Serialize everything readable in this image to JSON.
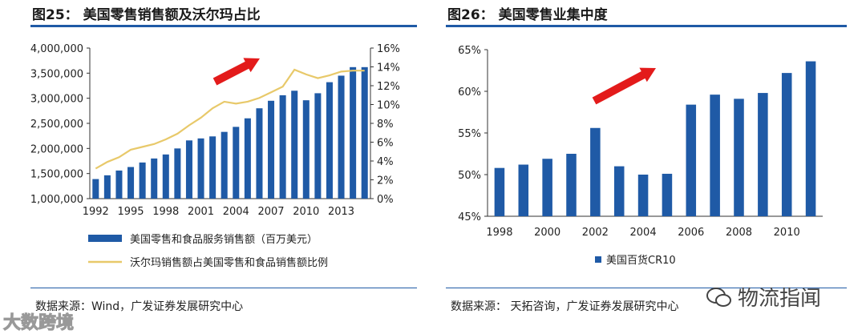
{
  "left": {
    "title": "图25： 美国零售销售额及沃尔玛占比",
    "source": "数据来源：Wind，广发证券发展研究中心",
    "legend": [
      "美国零售和食品服务销售额（百万美元）",
      "沃尔玛销售额占美国零售和食品销售额比例"
    ],
    "colors": {
      "bar": "#1f5aa6",
      "line": "#e8c96a",
      "arrow": "#e31b1b"
    }
  },
  "right": {
    "title": "图26： 美国零售业集中度",
    "source": "数据来源： 天拓咨询，广发证券发展研究中心",
    "legend": [
      "美国百货CR10"
    ],
    "colors": {
      "bar": "#1f5aa6",
      "arrow": "#e31b1b"
    }
  },
  "watermarks": {
    "left": "大数跨境",
    "right": "物流指闻"
  },
  "chart_data": [
    {
      "type": "bar+line",
      "title": "图25： 美国零售销售额及沃尔玛占比",
      "x": [
        1992,
        1993,
        1994,
        1995,
        1996,
        1997,
        1998,
        1999,
        2000,
        2001,
        2002,
        2003,
        2004,
        2005,
        2006,
        2007,
        2008,
        2009,
        2010,
        2011,
        2012,
        2013,
        2014,
        2015
      ],
      "x_tick_labels": [
        "1992",
        "1995",
        "1998",
        "2001",
        "2004",
        "2007",
        "2010",
        "2013"
      ],
      "series": [
        {
          "name": "美国零售和食品服务销售额（百万美元）",
          "axis": "left",
          "type": "bar",
          "values": [
            1390000,
            1465000,
            1560000,
            1630000,
            1720000,
            1800000,
            1880000,
            2000000,
            2160000,
            2200000,
            2240000,
            2330000,
            2430000,
            2600000,
            2800000,
            2950000,
            3060000,
            3150000,
            2960000,
            3100000,
            3320000,
            3450000,
            3620000,
            3620000
          ]
        },
        {
          "name": "沃尔玛销售额占美国零售和食品销售额比例",
          "axis": "right",
          "type": "line",
          "values": [
            3.2,
            3.9,
            4.4,
            5.2,
            5.5,
            5.8,
            6.3,
            6.9,
            7.8,
            8.6,
            9.6,
            10.3,
            10.1,
            10.3,
            10.7,
            11.3,
            11.9,
            13.7,
            13.2,
            12.8,
            13.1,
            13.5,
            13.6,
            13.6
          ]
        }
      ],
      "y_left": {
        "ticks": [
          "1,000,000",
          "1,500,000",
          "2,000,000",
          "2,500,000",
          "3,000,000",
          "3,500,000",
          "4,000,000"
        ],
        "ylim": [
          1000000,
          4000000
        ]
      },
      "y_right": {
        "ticks": [
          "0%",
          "2%",
          "4%",
          "6%",
          "8%",
          "10%",
          "12%",
          "14%",
          "16%"
        ],
        "ylim": [
          0,
          16
        ]
      }
    },
    {
      "type": "bar",
      "title": "图26： 美国零售业集中度",
      "x": [
        1998,
        1999,
        2000,
        2001,
        2002,
        2003,
        2004,
        2005,
        2006,
        2007,
        2008,
        2009,
        2010,
        2011
      ],
      "x_tick_labels": [
        "1998",
        "2000",
        "2002",
        "2004",
        "2006",
        "2008",
        "2010"
      ],
      "series": [
        {
          "name": "美国百货CR10",
          "values": [
            50.8,
            51.2,
            51.9,
            52.5,
            55.6,
            51.0,
            50.0,
            50.1,
            58.4,
            59.6,
            59.1,
            59.8,
            62.2,
            63.6
          ]
        }
      ],
      "y": {
        "ticks": [
          "45%",
          "50%",
          "55%",
          "60%",
          "65%"
        ],
        "ylim": [
          45,
          65
        ]
      }
    }
  ]
}
